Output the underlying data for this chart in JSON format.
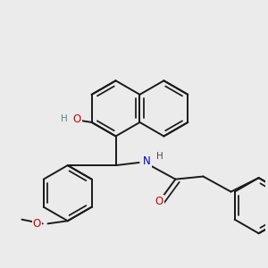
{
  "background_color": "#ebebeb",
  "bond_color": "#1a1a1a",
  "bond_width": 1.4,
  "dbo": 0.055,
  "atom_colors": {
    "O": "#cc0000",
    "N": "#0000cc",
    "H_O": "#4a8a8a",
    "H_N": "#4a4a4a"
  },
  "font_size": 8.5,
  "figsize": [
    3.0,
    3.0
  ],
  "dpi": 100
}
